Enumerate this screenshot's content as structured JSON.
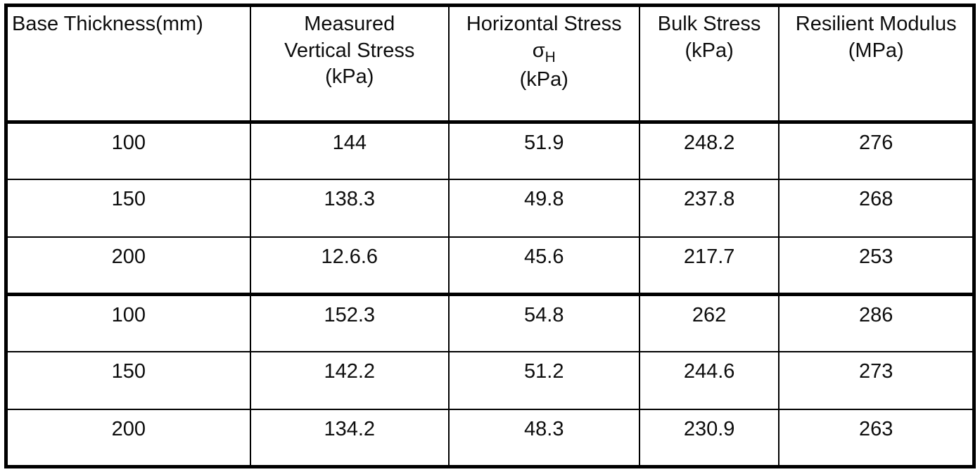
{
  "document": {
    "columns": [
      {
        "line1": "Base Thickness(mm)"
      },
      {
        "line1": "Measured",
        "line2": "Vertical Stress",
        "line3": "(kPa)"
      },
      {
        "line1": "Horizontal Stress",
        "sigma": "σ",
        "sigma_sub": "H",
        "line3": "(kPa)"
      },
      {
        "line1": "Bulk Stress",
        "line2": "(kPa)"
      },
      {
        "line1": "Resilient Modulus",
        "line2": "(MPa)"
      }
    ],
    "rows": [
      [
        "100",
        "144",
        "51.9",
        "248.2",
        "276"
      ],
      [
        "150",
        "138.3",
        "49.8",
        "237.8",
        "268"
      ],
      [
        "200",
        "12.6.6",
        "45.6",
        "217.7",
        "253"
      ],
      [
        "100",
        "152.3",
        "54.8",
        "262",
        "286"
      ],
      [
        "150",
        "142.2",
        "51.2",
        "244.6",
        "273"
      ],
      [
        "200",
        "134.2",
        "48.3",
        "230.9",
        "263"
      ]
    ]
  }
}
